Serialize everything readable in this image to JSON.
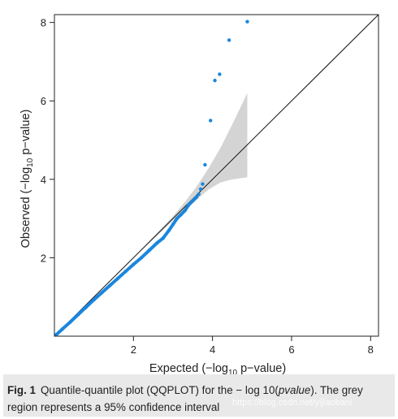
{
  "chart_data": {
    "type": "scatter",
    "title": "",
    "xlabel_pre": "Expected (−log",
    "xlabel_sub": "10",
    "xlabel_post": " p−value)",
    "ylabel_pre": "Observed (−log",
    "ylabel_sub": "10",
    "ylabel_post": " p−value)",
    "xlim": [
      0,
      8.2
    ],
    "ylim": [
      0,
      8.2
    ],
    "x_ticks": [
      2,
      4,
      6,
      8
    ],
    "x_tick_labels": [
      "2",
      "4",
      "6",
      "8"
    ],
    "y_ticks": [
      2,
      4,
      6,
      8
    ],
    "y_tick_labels": [
      "2",
      "4",
      "6",
      "8"
    ],
    "reference_line": {
      "from": [
        0,
        0
      ],
      "to": [
        8.2,
        8.2
      ]
    },
    "confidence_band": {
      "x": [
        0.5,
        2.0,
        2.7,
        3.0,
        3.3,
        3.6,
        3.9,
        4.2,
        4.5,
        4.88
      ],
      "lower": [
        0.5,
        2.0,
        2.66,
        2.95,
        3.22,
        3.48,
        3.74,
        3.92,
        4.0,
        4.05
      ],
      "upper": [
        0.5,
        2.0,
        2.74,
        3.06,
        3.42,
        3.82,
        4.28,
        4.8,
        5.4,
        6.2
      ]
    },
    "series": [
      {
        "x": [
          0.05,
          0.2,
          0.4,
          0.6,
          0.8,
          1.0,
          1.2,
          1.4,
          1.6,
          1.8,
          2.0,
          2.2,
          2.4,
          2.6,
          2.75,
          2.9,
          3.0,
          3.1,
          3.2,
          3.3,
          3.4,
          3.5,
          3.6,
          3.65,
          3.7,
          3.75,
          3.81,
          3.95,
          4.06,
          4.18,
          4.42,
          4.88
        ],
        "y": [
          0.04,
          0.18,
          0.36,
          0.55,
          0.74,
          0.93,
          1.11,
          1.29,
          1.47,
          1.65,
          1.83,
          2.0,
          2.19,
          2.38,
          2.5,
          2.7,
          2.85,
          3.0,
          3.1,
          3.2,
          3.35,
          3.45,
          3.55,
          3.62,
          3.75,
          3.88,
          4.37,
          5.5,
          6.52,
          6.68,
          7.55,
          8.02
        ]
      }
    ],
    "colors": {
      "points": "#1a86de",
      "band": "#d4d4d4",
      "reference_line": "#111111",
      "axis": "#222222"
    }
  },
  "caption": {
    "fig_label": "Fig. 1",
    "text_pre": "Quantile-quantile plot (QQPLOT) for the − log 10(",
    "text_italic": "pvalue",
    "text_post": "). The grey region represents a 95% confidence interval"
  },
  "watermark": "https://blog.csdn.net/yijiaobani"
}
